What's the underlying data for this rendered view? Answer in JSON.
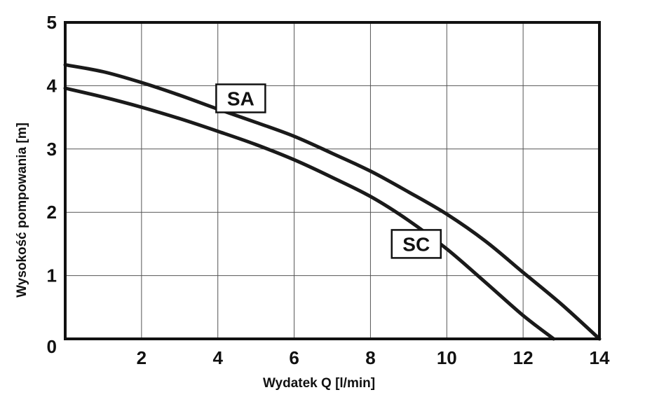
{
  "chart_data": {
    "type": "line",
    "title": "",
    "xlabel": "Wydatek Q  [l/min]",
    "ylabel": "Wysokość pompowania  [m]",
    "xlim": [
      0,
      14
    ],
    "ylim": [
      0,
      5
    ],
    "xticks": [
      2,
      4,
      6,
      8,
      10,
      12,
      14
    ],
    "yticks": [
      0,
      1,
      2,
      3,
      4,
      5
    ],
    "x_gridlines": [
      0,
      2,
      4,
      6,
      8,
      10,
      12,
      14
    ],
    "y_gridlines": [
      0,
      1,
      2,
      3,
      4,
      5
    ],
    "grid": true,
    "series": [
      {
        "name": "SA",
        "x": [
          0,
          1,
          2,
          3,
          4,
          5,
          6,
          7,
          8,
          9,
          10,
          11,
          12,
          13,
          14
        ],
        "y": [
          4.33,
          4.22,
          4.05,
          3.85,
          3.63,
          3.42,
          3.2,
          2.93,
          2.65,
          2.32,
          1.97,
          1.55,
          1.05,
          0.55,
          0
        ]
      },
      {
        "name": "SC",
        "x": [
          0,
          1,
          2,
          3,
          4,
          5,
          6,
          7,
          8,
          9,
          10,
          11,
          12,
          12.8
        ],
        "y": [
          3.96,
          3.82,
          3.66,
          3.48,
          3.28,
          3.07,
          2.83,
          2.55,
          2.25,
          1.87,
          1.42,
          0.9,
          0.37,
          0
        ]
      }
    ],
    "series_labels": [
      {
        "text": "SA",
        "x": 4.6,
        "y": 3.8
      },
      {
        "text": "SC",
        "x": 9.2,
        "y": 1.5
      }
    ]
  }
}
